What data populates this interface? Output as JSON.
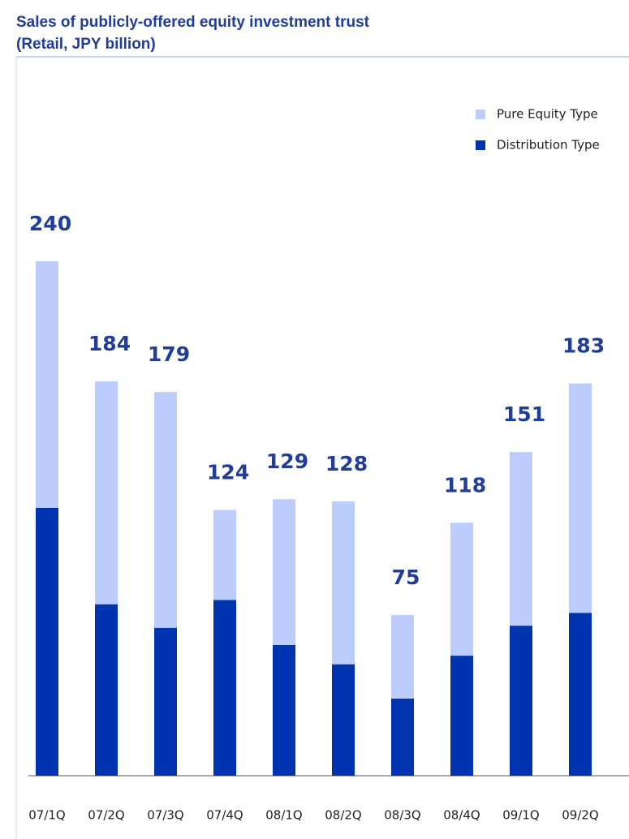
{
  "chart_data": {
    "type": "stacked-bar",
    "title": "Sales of publicly-offered equity investment trust",
    "subtitle": "(Retail, JPY billion)",
    "categories": [
      "07/1Q",
      "07/2Q",
      "07/3Q",
      "07/4Q",
      "08/1Q",
      "08/2Q",
      "08/3Q",
      "08/4Q",
      "09/1Q",
      "09/2Q"
    ],
    "series": [
      {
        "name": "Distribution Type",
        "color": "#0033b0",
        "values": [
          125,
          80,
          69,
          82,
          61,
          52,
          36,
          56,
          70,
          76
        ]
      },
      {
        "name": "Pure Equity Type",
        "color": "#bccdfd",
        "values": [
          115,
          104,
          110,
          42,
          68,
          76,
          39,
          62,
          81,
          107
        ]
      }
    ],
    "totals": [
      240,
      184,
      179,
      124,
      129,
      128,
      75,
      118,
      151,
      183
    ]
  }
}
